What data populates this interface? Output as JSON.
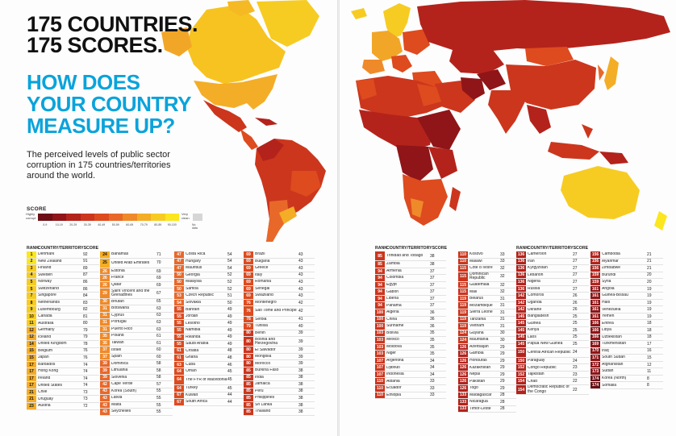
{
  "headline": {
    "line1": "175 COUNTRIES.",
    "line2": "175 SCORES."
  },
  "question": {
    "line1": "HOW DOES",
    "line2": "YOUR COUNTRY",
    "line3": "MEASURE UP?"
  },
  "description": "The perceived levels of public sector corruption in 175 countries/territories around the world.",
  "scale": {
    "title": "SCORE",
    "low_end": "Highly corrupt",
    "high_end": "Very clean",
    "ranges": [
      "0-9",
      "10-19",
      "20-29",
      "30-39",
      "40-49",
      "50-59",
      "60-69",
      "70-79",
      "80-89",
      "90-100"
    ],
    "no_data": "No data",
    "colors": [
      "#6b0f15",
      "#8f1518",
      "#b3231c",
      "#cc361d",
      "#dd4b1f",
      "#e8682a",
      "#ef8a2a",
      "#f4ad26",
      "#f7cc22",
      "#fbe61f"
    ]
  },
  "headers": {
    "rank": "RANK",
    "country": "COUNTRY/TERRITORY",
    "score": "SCORE"
  },
  "columns": [
    [
      {
        "r": "1",
        "c": "Denmark",
        "s": "92"
      },
      {
        "r": "2",
        "c": "New Zealand",
        "s": "91"
      },
      {
        "r": "3",
        "c": "Finland",
        "s": "89"
      },
      {
        "r": "4",
        "c": "Sweden",
        "s": "87"
      },
      {
        "r": "5",
        "c": "Norway",
        "s": "86"
      },
      {
        "r": "5",
        "c": "Switzerland",
        "s": "86"
      },
      {
        "r": "7",
        "c": "Singapore",
        "s": "84"
      },
      {
        "r": "8",
        "c": "Netherlands",
        "s": "83"
      },
      {
        "r": "9",
        "c": "Luxembourg",
        "s": "82"
      },
      {
        "r": "10",
        "c": "Canada",
        "s": "81"
      },
      {
        "r": "11",
        "c": "Australia",
        "s": "80"
      },
      {
        "r": "12",
        "c": "Germany",
        "s": "79"
      },
      {
        "r": "12",
        "c": "Iceland",
        "s": "79"
      },
      {
        "r": "14",
        "c": "United Kingdom",
        "s": "78"
      },
      {
        "r": "15",
        "c": "Belgium",
        "s": "76"
      },
      {
        "r": "15",
        "c": "Japan",
        "s": "76"
      },
      {
        "r": "17",
        "c": "Barbados",
        "s": "74"
      },
      {
        "r": "17",
        "c": "Hong Kong",
        "s": "74"
      },
      {
        "r": "17",
        "c": "Ireland",
        "s": "74"
      },
      {
        "r": "17",
        "c": "United States",
        "s": "74"
      },
      {
        "r": "21",
        "c": "Chile",
        "s": "73"
      },
      {
        "r": "21",
        "c": "Uruguay",
        "s": "73"
      },
      {
        "r": "23",
        "c": "Austria",
        "s": "72"
      }
    ],
    [
      {
        "r": "24",
        "c": "Bahamas",
        "s": "71"
      },
      {
        "r": "25",
        "c": "United Arab Emirates",
        "s": "70"
      },
      {
        "r": "26",
        "c": "Estonia",
        "s": "69"
      },
      {
        "r": "26",
        "c": "France",
        "s": "69"
      },
      {
        "r": "26",
        "c": "Qatar",
        "s": "69"
      },
      {
        "r": "29",
        "c": "Saint Vincent and the Grenadines",
        "s": "67"
      },
      {
        "r": "30",
        "c": "Bhutan",
        "s": "65"
      },
      {
        "r": "31",
        "c": "Botswana",
        "s": "63"
      },
      {
        "r": "31",
        "c": "Cyprus",
        "s": "63"
      },
      {
        "r": "31",
        "c": "Portugal",
        "s": "63"
      },
      {
        "r": "31",
        "c": "Puerto Rico",
        "s": "63"
      },
      {
        "r": "35",
        "c": "Poland",
        "s": "61"
      },
      {
        "r": "35",
        "c": "Taiwan",
        "s": "61"
      },
      {
        "r": "37",
        "c": "Israel",
        "s": "60"
      },
      {
        "r": "37",
        "c": "Spain",
        "s": "60"
      },
      {
        "r": "39",
        "c": "Dominica",
        "s": "58"
      },
      {
        "r": "39",
        "c": "Lithuania",
        "s": "58"
      },
      {
        "r": "39",
        "c": "Slovenia",
        "s": "58"
      },
      {
        "r": "42",
        "c": "Cape Verde",
        "s": "57"
      },
      {
        "r": "43",
        "c": "Korea (South)",
        "s": "55"
      },
      {
        "r": "43",
        "c": "Latvia",
        "s": "55"
      },
      {
        "r": "43",
        "c": "Malta",
        "s": "55"
      },
      {
        "r": "43",
        "c": "Seychelles",
        "s": "55"
      }
    ],
    [
      {
        "r": "47",
        "c": "Costa Rica",
        "s": "54"
      },
      {
        "r": "47",
        "c": "Hungary",
        "s": "54"
      },
      {
        "r": "47",
        "c": "Mauritius",
        "s": "54"
      },
      {
        "r": "50",
        "c": "Georgia",
        "s": "52"
      },
      {
        "r": "50",
        "c": "Malaysia",
        "s": "52"
      },
      {
        "r": "50",
        "c": "Samoa",
        "s": "52"
      },
      {
        "r": "53",
        "c": "Czech Republic",
        "s": "51"
      },
      {
        "r": "54",
        "c": "Slovakia",
        "s": "50"
      },
      {
        "r": "55",
        "c": "Bahrain",
        "s": "49"
      },
      {
        "r": "55",
        "c": "Jordan",
        "s": "49"
      },
      {
        "r": "55",
        "c": "Lesotho",
        "s": "49"
      },
      {
        "r": "55",
        "c": "Namibia",
        "s": "49"
      },
      {
        "r": "55",
        "c": "Rwanda",
        "s": "49"
      },
      {
        "r": "55",
        "c": "Saudi Arabia",
        "s": "49"
      },
      {
        "r": "61",
        "c": "Croatia",
        "s": "48"
      },
      {
        "r": "61",
        "c": "Ghana",
        "s": "48"
      },
      {
        "r": "63",
        "c": "Cuba",
        "s": "46"
      },
      {
        "r": "64",
        "c": "Oman",
        "s": "45"
      },
      {
        "r": "64",
        "c": "The FYR of Macedonia",
        "s": "45"
      },
      {
        "r": "64",
        "c": "Turkey",
        "s": "45"
      },
      {
        "r": "67",
        "c": "Kuwait",
        "s": "44"
      },
      {
        "r": "67",
        "c": "South Africa",
        "s": "44"
      }
    ],
    [
      {
        "r": "69",
        "c": "Brazil",
        "s": "43"
      },
      {
        "r": "69",
        "c": "Bulgaria",
        "s": "43"
      },
      {
        "r": "69",
        "c": "Greece",
        "s": "43"
      },
      {
        "r": "69",
        "c": "Italy",
        "s": "43"
      },
      {
        "r": "69",
        "c": "Romania",
        "s": "43"
      },
      {
        "r": "69",
        "c": "Senegal",
        "s": "43"
      },
      {
        "r": "69",
        "c": "Swaziland",
        "s": "43"
      },
      {
        "r": "76",
        "c": "Montenegro",
        "s": "42"
      },
      {
        "r": "76",
        "c": "Sao Tome and Principe",
        "s": "42"
      },
      {
        "r": "78",
        "c": "Serbia",
        "s": "41"
      },
      {
        "r": "79",
        "c": "Tunisia",
        "s": "40"
      },
      {
        "r": "80",
        "c": "Benin",
        "s": "39"
      },
      {
        "r": "80",
        "c": "Bosnia and Herzegovina",
        "s": "39"
      },
      {
        "r": "80",
        "c": "El Salvador",
        "s": "39"
      },
      {
        "r": "80",
        "c": "Mongolia",
        "s": "39"
      },
      {
        "r": "80",
        "c": "Morocco",
        "s": "39"
      },
      {
        "r": "85",
        "c": "Burkina Faso",
        "s": "38"
      },
      {
        "r": "85",
        "c": "India",
        "s": "38"
      },
      {
        "r": "85",
        "c": "Jamaica",
        "s": "38"
      },
      {
        "r": "85",
        "c": "Peru",
        "s": "38"
      },
      {
        "r": "85",
        "c": "Philippines",
        "s": "38"
      },
      {
        "r": "85",
        "c": "Sri Lanka",
        "s": "38"
      },
      {
        "r": "85",
        "c": "Thailand",
        "s": "38"
      }
    ],
    [
      {
        "r": "85",
        "c": "Trinidad and Tobago",
        "s": "38"
      },
      {
        "r": "85",
        "c": "Zambia",
        "s": "38"
      },
      {
        "r": "94",
        "c": "Armenia",
        "s": "37"
      },
      {
        "r": "94",
        "c": "Colombia",
        "s": "37"
      },
      {
        "r": "94",
        "c": "Egypt",
        "s": "37"
      },
      {
        "r": "94",
        "c": "Gabon",
        "s": "37"
      },
      {
        "r": "94",
        "c": "Liberia",
        "s": "37"
      },
      {
        "r": "94",
        "c": "Panama",
        "s": "37"
      },
      {
        "r": "100",
        "c": "Algeria",
        "s": "36"
      },
      {
        "r": "100",
        "c": "China",
        "s": "36"
      },
      {
        "r": "100",
        "c": "Suriname",
        "s": "36"
      },
      {
        "r": "103",
        "c": "Bolivia",
        "s": "35"
      },
      {
        "r": "103",
        "c": "Mexico",
        "s": "35"
      },
      {
        "r": "103",
        "c": "Moldova",
        "s": "35"
      },
      {
        "r": "103",
        "c": "Niger",
        "s": "35"
      },
      {
        "r": "107",
        "c": "Argentina",
        "s": "34"
      },
      {
        "r": "107",
        "c": "Djibouti",
        "s": "34"
      },
      {
        "r": "107",
        "c": "Indonesia",
        "s": "34"
      },
      {
        "r": "110",
        "c": "Albania",
        "s": "33"
      },
      {
        "r": "110",
        "c": "Ecuador",
        "s": "33"
      },
      {
        "r": "110",
        "c": "Ethiopia",
        "s": "33"
      }
    ],
    [
      {
        "r": "110",
        "c": "Kosovo",
        "s": "33"
      },
      {
        "r": "110",
        "c": "Malawi",
        "s": "33"
      },
      {
        "r": "115",
        "c": "Côte d´Ivoire",
        "s": "32"
      },
      {
        "r": "115",
        "c": "Dominican Republic",
        "s": "32"
      },
      {
        "r": "115",
        "c": "Guatemala",
        "s": "32"
      },
      {
        "r": "115",
        "c": "Mali",
        "s": "32"
      },
      {
        "r": "119",
        "c": "Belarus",
        "s": "31"
      },
      {
        "r": "119",
        "c": "Mozambique",
        "s": "31"
      },
      {
        "r": "119",
        "c": "Sierra Leone",
        "s": "31"
      },
      {
        "r": "119",
        "c": "Tanzania",
        "s": "31"
      },
      {
        "r": "119",
        "c": "Vietnam",
        "s": "31"
      },
      {
        "r": "124",
        "c": "Guyana",
        "s": "30"
      },
      {
        "r": "124",
        "c": "Mauritania",
        "s": "30"
      },
      {
        "r": "126",
        "c": "Azerbaijan",
        "s": "29"
      },
      {
        "r": "126",
        "c": "Gambia",
        "s": "29"
      },
      {
        "r": "126",
        "c": "Honduras",
        "s": "29"
      },
      {
        "r": "126",
        "c": "Kazakhstan",
        "s": "29"
      },
      {
        "r": "126",
        "c": "Nepal",
        "s": "29"
      },
      {
        "r": "126",
        "c": "Pakistan",
        "s": "29"
      },
      {
        "r": "126",
        "c": "Togo",
        "s": "29"
      },
      {
        "r": "133",
        "c": "Madagascar",
        "s": "28"
      },
      {
        "r": "133",
        "c": "Nicaragua",
        "s": "28"
      },
      {
        "r": "133",
        "c": "Timor-Leste",
        "s": "28"
      }
    ],
    [
      {
        "r": "136",
        "c": "Cameroon",
        "s": "27"
      },
      {
        "r": "136",
        "c": "Iran",
        "s": "27"
      },
      {
        "r": "136",
        "c": "Kyrgyzstan",
        "s": "27"
      },
      {
        "r": "136",
        "c": "Lebanon",
        "s": "27"
      },
      {
        "r": "136",
        "c": "Nigeria",
        "s": "27"
      },
      {
        "r": "136",
        "c": "Russia",
        "s": "27"
      },
      {
        "r": "142",
        "c": "Comoros",
        "s": "26"
      },
      {
        "r": "142",
        "c": "Uganda",
        "s": "26"
      },
      {
        "r": "142",
        "c": "Ukraine",
        "s": "26"
      },
      {
        "r": "145",
        "c": "Bangladesh",
        "s": "25"
      },
      {
        "r": "145",
        "c": "Guinea",
        "s": "25"
      },
      {
        "r": "145",
        "c": "Kenya",
        "s": "25"
      },
      {
        "r": "145",
        "c": "Laos",
        "s": "25"
      },
      {
        "r": "145",
        "c": "Papua New Guinea",
        "s": "25"
      },
      {
        "r": "150",
        "c": "Central African Republic",
        "s": "24"
      },
      {
        "r": "150",
        "c": "Paraguay",
        "s": "24"
      },
      {
        "r": "152",
        "c": "Congo Republic",
        "s": "23"
      },
      {
        "r": "152",
        "c": "Tajikistan",
        "s": "23"
      },
      {
        "r": "154",
        "c": "Chad",
        "s": "22"
      },
      {
        "r": "154",
        "c": "Democratic Republic of the Congo",
        "s": "22"
      }
    ],
    [
      {
        "r": "156",
        "c": "Cambodia",
        "s": "21"
      },
      {
        "r": "156",
        "c": "Myanmar",
        "s": "21"
      },
      {
        "r": "156",
        "c": "Zimbabwe",
        "s": "21"
      },
      {
        "r": "159",
        "c": "Burundi",
        "s": "20"
      },
      {
        "r": "159",
        "c": "Syria",
        "s": "20"
      },
      {
        "r": "161",
        "c": "Angola",
        "s": "19"
      },
      {
        "r": "161",
        "c": "Guinea-Bissau",
        "s": "19"
      },
      {
        "r": "161",
        "c": "Haiti",
        "s": "19"
      },
      {
        "r": "161",
        "c": "Venezuela",
        "s": "19"
      },
      {
        "r": "161",
        "c": "Yemen",
        "s": "19"
      },
      {
        "r": "166",
        "c": "Eritrea",
        "s": "18"
      },
      {
        "r": "166",
        "c": "Libya",
        "s": "18"
      },
      {
        "r": "166",
        "c": "Uzbekistan",
        "s": "18"
      },
      {
        "r": "169",
        "c": "Turkmenistan",
        "s": "17"
      },
      {
        "r": "170",
        "c": "Iraq",
        "s": "16"
      },
      {
        "r": "171",
        "c": "South Sudan",
        "s": "15"
      },
      {
        "r": "172",
        "c": "Afghanistan",
        "s": "12"
      },
      {
        "r": "173",
        "c": "Sudan",
        "s": "11"
      },
      {
        "r": "174",
        "c": "Korea (North)",
        "s": "8"
      },
      {
        "r": "174",
        "c": "Somalia",
        "s": "8"
      }
    ]
  ]
}
